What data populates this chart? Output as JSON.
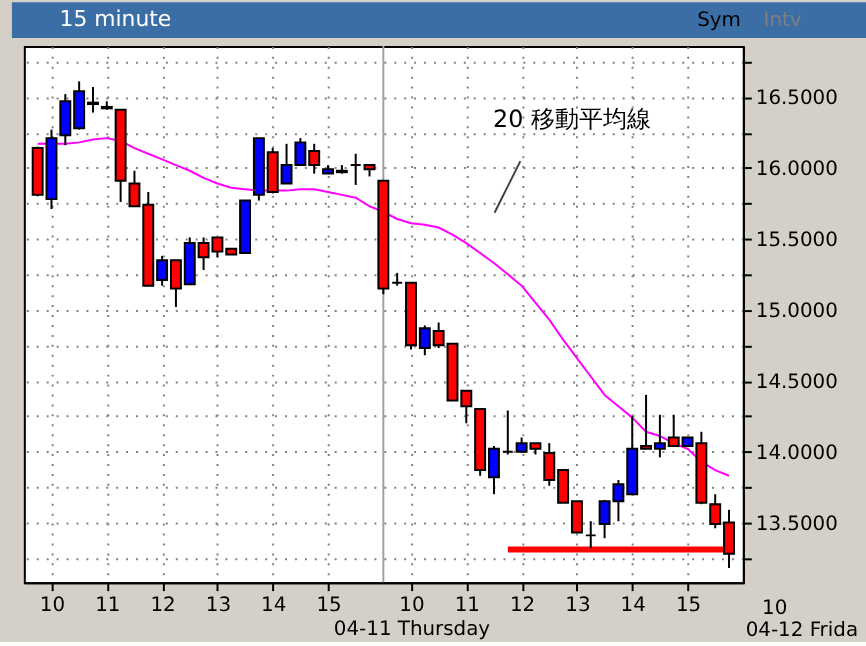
{
  "chart_data": {
    "type": "candlestick",
    "title": "15 minute",
    "categories": [
      null,
      "10",
      null,
      null,
      null,
      "11",
      null,
      null,
      null,
      "12",
      null,
      null,
      null,
      "13",
      null,
      null,
      null,
      "14",
      null,
      null,
      null,
      "15",
      null,
      null,
      null,
      null,
      null,
      "10\n04-11 Thursday",
      null,
      null,
      null,
      "11",
      null,
      null,
      null,
      "12",
      null,
      null,
      null,
      "13",
      null,
      null,
      null,
      "14",
      null,
      null,
      null,
      "15",
      null,
      null,
      null
    ],
    "ohlc": [
      [
        16.14,
        16.15,
        15.8,
        15.81
      ],
      [
        15.78,
        16.27,
        15.71,
        16.21
      ],
      [
        16.23,
        16.52,
        16.16,
        16.47
      ],
      [
        16.28,
        16.61,
        16.27,
        16.54
      ],
      [
        16.45,
        16.57,
        16.39,
        16.46
      ],
      [
        16.43,
        16.47,
        16.41,
        16.42
      ],
      [
        16.41,
        16.41,
        15.76,
        15.91
      ],
      [
        15.89,
        15.98,
        15.73,
        15.73
      ],
      [
        15.74,
        15.83,
        15.17,
        15.17
      ],
      [
        15.21,
        15.38,
        15.17,
        15.35
      ],
      [
        15.35,
        15.35,
        15.02,
        15.15
      ],
      [
        15.18,
        15.51,
        15.18,
        15.47
      ],
      [
        15.47,
        15.51,
        15.28,
        15.37
      ],
      [
        15.51,
        15.51,
        15.37,
        15.41
      ],
      [
        15.43,
        15.43,
        15.39,
        15.39
      ],
      [
        15.4,
        15.77,
        15.4,
        15.77
      ],
      [
        15.81,
        16.21,
        15.77,
        16.21
      ],
      [
        16.11,
        16.14,
        15.82,
        15.83
      ],
      [
        15.89,
        16.17,
        15.89,
        16.02
      ],
      [
        16.02,
        16.21,
        16.02,
        16.18
      ],
      [
        16.12,
        16.17,
        15.96,
        16.02
      ],
      [
        15.96,
        16.02,
        15.96,
        15.99
      ],
      [
        15.98,
        16.02,
        15.96,
        15.97
      ],
      [
        16.02,
        16.1,
        15.88,
        16.02
      ],
      [
        16.02,
        16.02,
        15.94,
        15.99
      ],
      [
        15.91,
        15.91,
        15.11,
        15.15
      ],
      [
        15.19,
        15.26,
        15.17,
        15.19
      ],
      [
        15.19,
        15.19,
        14.72,
        14.75
      ],
      [
        14.73,
        14.89,
        14.68,
        14.87
      ],
      [
        14.85,
        14.91,
        14.73,
        14.75
      ],
      [
        14.76,
        14.76,
        14.36,
        14.36
      ],
      [
        14.43,
        14.43,
        14.2,
        14.32
      ],
      [
        14.3,
        14.3,
        13.83,
        13.87
      ],
      [
        13.82,
        14.04,
        13.7,
        14.02
      ],
      [
        14.0,
        14.29,
        13.98,
        14.0
      ],
      [
        14.0,
        14.1,
        13.99,
        14.06
      ],
      [
        14.06,
        14.06,
        13.98,
        14.02
      ],
      [
        13.99,
        14.06,
        13.76,
        13.8
      ],
      [
        13.87,
        13.87,
        13.64,
        13.64
      ],
      [
        13.65,
        13.65,
        13.43,
        13.43
      ],
      [
        13.41,
        13.51,
        13.32,
        13.41
      ],
      [
        13.49,
        13.66,
        13.39,
        13.65
      ],
      [
        13.65,
        13.8,
        13.51,
        13.77
      ],
      [
        13.7,
        14.25,
        13.7,
        14.02
      ],
      [
        14.04,
        14.4,
        14.02,
        14.02
      ],
      [
        14.02,
        14.26,
        13.96,
        14.06
      ],
      [
        14.1,
        14.26,
        14.04,
        14.04
      ],
      [
        14.04,
        14.1,
        14.04,
        14.1
      ],
      [
        14.06,
        14.14,
        13.63,
        13.64
      ],
      [
        13.63,
        13.7,
        13.46,
        13.49
      ],
      [
        13.5,
        13.59,
        13.18,
        13.28
      ]
    ],
    "colors": [
      "#ff0000",
      "#0000ff",
      "#0000ff",
      "#0000ff",
      "#000000",
      "#000000",
      "#ff0000",
      "#ff0000",
      "#ff0000",
      "#0000ff",
      "#ff0000",
      "#0000ff",
      "#ff0000",
      "#ff0000",
      "#ff0000",
      "#0000ff",
      "#0000ff",
      "#ff0000",
      "#0000ff",
      "#0000ff",
      "#ff0000",
      "#0000ff",
      "#000000",
      "#000000",
      "#ff0000",
      "#ff0000",
      "#000000",
      "#ff0000",
      "#0000ff",
      "#ff0000",
      "#ff0000",
      "#ff0000",
      "#ff0000",
      "#0000ff",
      "#000000",
      "#0000ff",
      "#ff0000",
      "#ff0000",
      "#ff0000",
      "#ff0000",
      "#000000",
      "#0000ff",
      "#0000ff",
      "#0000ff",
      "#ff0000",
      "#0000ff",
      "#ff0000",
      "#0000ff",
      "#ff0000",
      "#ff0000",
      "#ff0000"
    ],
    "series": [
      {
        "name": "20 移動平均線",
        "type": "line",
        "color": "#ff00ff",
        "values": [
          16.17,
          16.17,
          16.17,
          16.18,
          16.2,
          16.21,
          16.19,
          16.14,
          16.1,
          16.06,
          16.02,
          15.98,
          15.93,
          15.89,
          15.86,
          15.85,
          15.84,
          15.84,
          15.84,
          15.85,
          15.85,
          15.83,
          15.81,
          15.79,
          15.73,
          15.69,
          15.64,
          15.61,
          15.6,
          15.58,
          15.53,
          15.47,
          15.4,
          15.33,
          15.25,
          15.17,
          15.05,
          14.93,
          14.79,
          14.66,
          14.53,
          14.4,
          14.32,
          14.24,
          14.14,
          14.11,
          14.06,
          14.02,
          13.93,
          13.87,
          13.83
        ]
      },
      {
        "type": "line",
        "color": "#ff0000",
        "values": [
          null,
          null,
          null,
          null,
          null,
          null,
          null,
          null,
          null,
          null,
          null,
          null,
          null,
          null,
          null,
          null,
          null,
          null,
          null,
          null,
          null,
          null,
          null,
          null,
          null,
          null,
          null,
          null,
          null,
          null,
          null,
          null,
          null,
          null,
          13.31,
          13.31,
          13.31,
          13.31,
          13.31,
          13.31,
          13.31,
          13.31,
          13.31,
          13.31,
          13.31,
          13.31,
          13.31,
          13.31,
          13.31,
          13.31,
          13.31
        ]
      }
    ],
    "ylim": [
      13.08,
      16.86
    ],
    "yticks": [
      {
        "value": 13.25,
        "label": null
      },
      {
        "value": 13.5,
        "label": "13.5000"
      },
      {
        "value": 13.75,
        "label": null
      },
      {
        "value": 14.0,
        "label": "14.0000"
      },
      {
        "value": 14.25,
        "label": null
      },
      {
        "value": 14.5,
        "label": "14.5000"
      },
      {
        "value": 14.75,
        "label": null
      },
      {
        "value": 15.0,
        "label": "15.0000"
      },
      {
        "value": 15.25,
        "label": null
      },
      {
        "value": 15.5,
        "label": "15.5000"
      },
      {
        "value": 15.75,
        "label": null
      },
      {
        "value": 16.0,
        "label": "16.0000"
      },
      {
        "value": 16.25,
        "label": null
      },
      {
        "value": 16.5,
        "label": "16.5000"
      },
      {
        "value": 16.75,
        "label": null
      }
    ],
    "grid": true,
    "annotations": [
      "Sym",
      "Intv",
      "10",
      "04-12 Frida"
    ]
  }
}
